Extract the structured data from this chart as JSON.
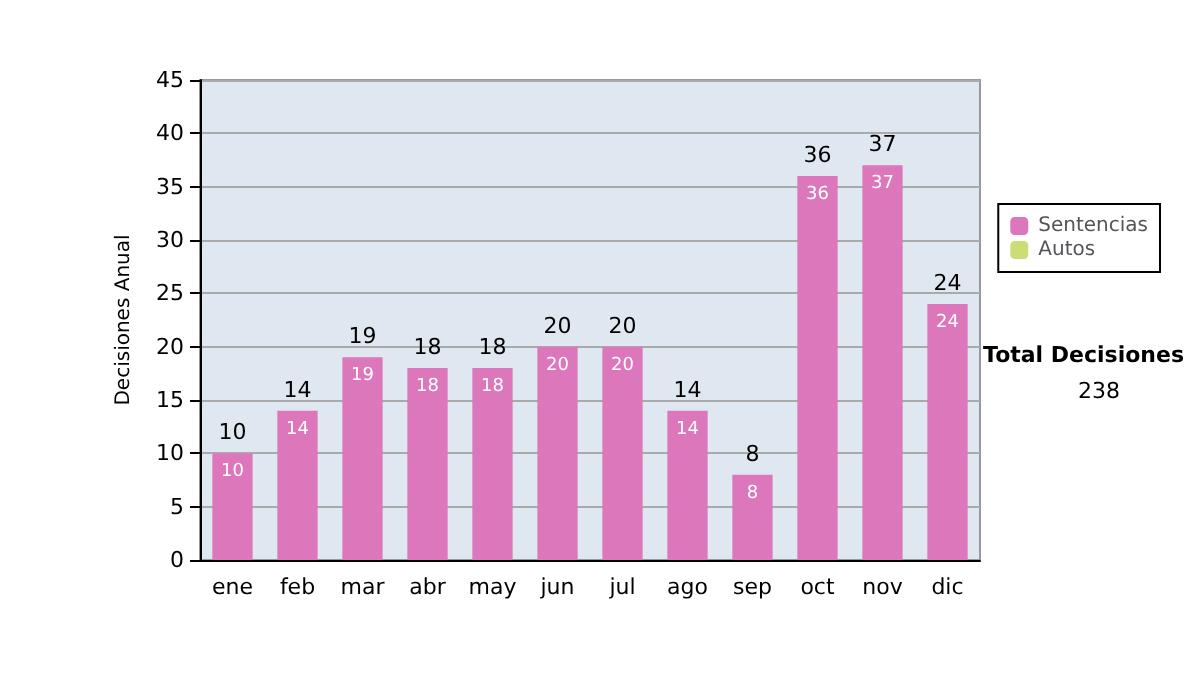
{
  "chart_data": {
    "type": "bar",
    "ylabel": "Decisiones Anual",
    "categories": [
      "ene",
      "feb",
      "mar",
      "abr",
      "may",
      "jun",
      "jul",
      "ago",
      "sep",
      "oct",
      "nov",
      "dic"
    ],
    "series": [
      {
        "name": "Sentencias",
        "color": "#dd77bb",
        "values": [
          10,
          14,
          19,
          18,
          18,
          20,
          20,
          14,
          8,
          36,
          37,
          24
        ],
        "value_labels": [
          "10",
          "14",
          "19",
          "18",
          "18",
          "20",
          "20",
          "14",
          "8",
          "36",
          "37",
          "24"
        ]
      },
      {
        "name": "Autos",
        "color": "#ccdd77",
        "values": [
          0,
          0,
          0,
          0,
          0,
          0,
          0,
          0,
          0,
          0,
          0,
          0
        ],
        "value_labels": [
          null,
          null,
          null,
          null,
          null,
          null,
          null,
          null,
          null,
          null,
          null,
          null
        ]
      }
    ],
    "stacked": true,
    "totals": [
      "10",
      "14",
      "19",
      "18",
      "18",
      "20",
      "20",
      "14",
      "8",
      "36",
      "37",
      "24"
    ],
    "ylim": [
      0,
      45
    ],
    "yticks": [
      0,
      5,
      10,
      15,
      20,
      25,
      30,
      35,
      40,
      45
    ],
    "grid": "y",
    "legend": "right",
    "annotations": [
      "Total Decisiones",
      "238"
    ]
  }
}
